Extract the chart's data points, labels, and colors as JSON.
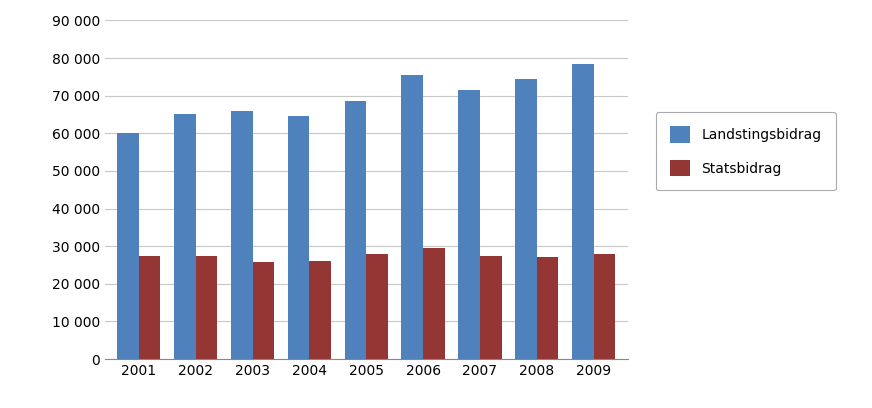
{
  "years": [
    "2001",
    "2002",
    "2003",
    "2004",
    "2005",
    "2006",
    "2007",
    "2008",
    "2009"
  ],
  "landstingsbidrag": [
    60000,
    65000,
    66000,
    64500,
    68500,
    75500,
    71500,
    74500,
    78500
  ],
  "statsbidrag": [
    27500,
    27500,
    25800,
    26000,
    28000,
    29500,
    27500,
    27000,
    28000
  ],
  "color_landsting": "#4F81BD",
  "color_stats": "#943634",
  "legend_landsting": "Landstingsbidrag",
  "legend_stats": "Statsbidrag",
  "ylim": [
    0,
    90000
  ],
  "yticks": [
    0,
    10000,
    20000,
    30000,
    40000,
    50000,
    60000,
    70000,
    80000,
    90000
  ],
  "ytick_labels": [
    "0",
    "10 000",
    "20 000",
    "30 000",
    "40 000",
    "50 000",
    "60 000",
    "70 000",
    "80 000",
    "90 000"
  ],
  "background_color": "#ffffff",
  "grid_color": "#c8c8c8",
  "bar_width": 0.38
}
